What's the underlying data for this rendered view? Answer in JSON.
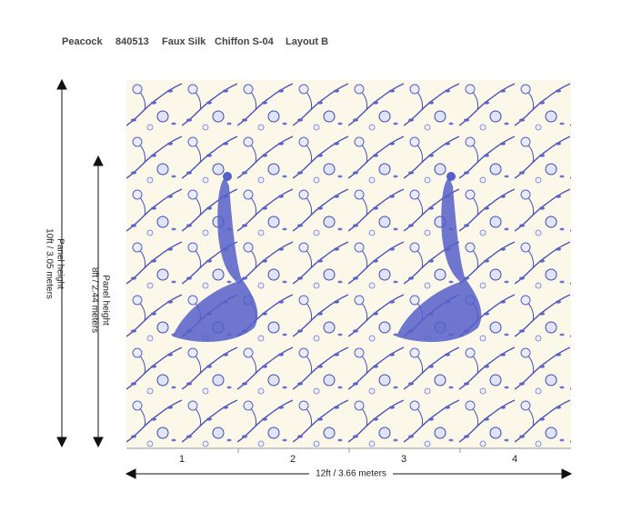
{
  "header": {
    "items": [
      "Peacock",
      "840513",
      "Faux Silk",
      "Chiffon S-04",
      "Layout B"
    ]
  },
  "dimensions": {
    "full_height": {
      "label": "Panel height",
      "value": "10ft / 3.05 meters"
    },
    "visible_height": {
      "label": "Panel height",
      "value": "8ft / 2.44 meters"
    },
    "width": "12ft  / 3.66 meters"
  },
  "panels": [
    "1",
    "2",
    "3",
    "4"
  ]
}
